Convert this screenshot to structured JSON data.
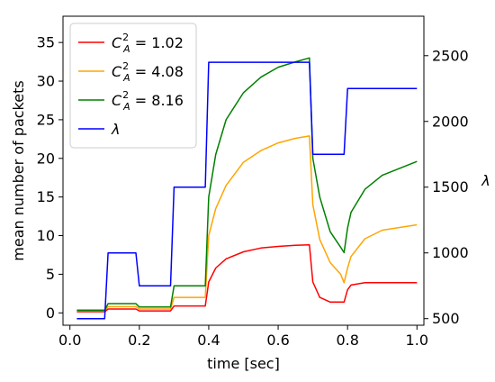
{
  "chart_data": {
    "type": "line",
    "xlabel": "time [sec]",
    "ylabel": "mean number of packets",
    "y2label": "λ",
    "xlim": [
      -0.02,
      1.02
    ],
    "ylim": [
      -1.6,
      38.4
    ],
    "y2lim": [
      450,
      2800
    ],
    "x_ticks": [
      0.0,
      0.2,
      0.4,
      0.6,
      0.8,
      1.0
    ],
    "x_tick_labels": [
      "0.0",
      "0.2",
      "0.4",
      "0.6",
      "0.8",
      "1.0"
    ],
    "y_ticks": [
      0,
      5,
      10,
      15,
      20,
      25,
      30,
      35
    ],
    "y_tick_labels": [
      "0",
      "5",
      "10",
      "15",
      "20",
      "25",
      "30",
      "35"
    ],
    "y2_ticks": [
      500,
      1000,
      1500,
      2000,
      2500
    ],
    "y2_tick_labels": [
      "500",
      "1000",
      "1500",
      "2000",
      "2500"
    ],
    "legend_position": "top-left",
    "grid": false,
    "series": [
      {
        "name_base": "C",
        "name_sup": "2",
        "name_sub": "A",
        "name_value": " = 1.02",
        "color": "#ff0000",
        "axis": "left",
        "x": [
          0.02,
          0.1,
          0.11,
          0.19,
          0.2,
          0.29,
          0.3,
          0.39,
          0.4,
          0.42,
          0.45,
          0.5,
          0.55,
          0.6,
          0.65,
          0.69,
          0.7,
          0.72,
          0.75,
          0.79,
          0.8,
          0.81,
          0.85,
          0.9,
          1.0
        ],
        "y": [
          0.15,
          0.15,
          0.5,
          0.5,
          0.25,
          0.25,
          0.9,
          0.9,
          4.0,
          5.8,
          7.0,
          7.9,
          8.4,
          8.6,
          8.75,
          8.8,
          4.0,
          2.0,
          1.4,
          1.4,
          3.0,
          3.6,
          3.9,
          3.9,
          3.9
        ]
      },
      {
        "name_base": "C",
        "name_sup": "2",
        "name_sub": "A",
        "name_value": " = 4.08",
        "color": "#ffa500",
        "axis": "left",
        "x": [
          0.02,
          0.1,
          0.11,
          0.19,
          0.2,
          0.29,
          0.3,
          0.39,
          0.4,
          0.42,
          0.45,
          0.5,
          0.55,
          0.6,
          0.65,
          0.69,
          0.7,
          0.72,
          0.75,
          0.78,
          0.79,
          0.8,
          0.81,
          0.85,
          0.9,
          1.0
        ],
        "y": [
          0.3,
          0.3,
          0.8,
          0.8,
          0.5,
          0.5,
          2.0,
          2.0,
          10.0,
          13.5,
          16.5,
          19.5,
          21.0,
          22.0,
          22.6,
          22.9,
          14.0,
          9.5,
          6.5,
          5.0,
          3.9,
          5.8,
          7.3,
          9.6,
          10.7,
          11.4
        ]
      },
      {
        "name_base": "C",
        "name_sup": "2",
        "name_sub": "A",
        "name_value": " = 8.16",
        "color": "#008000",
        "axis": "left",
        "x": [
          0.02,
          0.1,
          0.11,
          0.19,
          0.2,
          0.29,
          0.3,
          0.39,
          0.4,
          0.42,
          0.45,
          0.5,
          0.55,
          0.6,
          0.65,
          0.69,
          0.7,
          0.72,
          0.75,
          0.78,
          0.79,
          0.8,
          0.81,
          0.85,
          0.9,
          1.0
        ],
        "y": [
          0.35,
          0.35,
          1.2,
          1.2,
          0.75,
          0.75,
          3.5,
          3.5,
          15.0,
          20.5,
          25.0,
          28.5,
          30.5,
          31.8,
          32.5,
          33.0,
          20.0,
          15.0,
          10.5,
          8.5,
          7.8,
          11.0,
          13.0,
          16.0,
          17.8,
          19.6
        ]
      },
      {
        "name": "λ",
        "color": "#0000ff",
        "axis": "right",
        "x": [
          0.02,
          0.1,
          0.11,
          0.19,
          0.2,
          0.29,
          0.3,
          0.39,
          0.4,
          0.69,
          0.7,
          0.79,
          0.8,
          1.0
        ],
        "y": [
          500,
          500,
          1000,
          1000,
          750,
          750,
          1500,
          1500,
          2450,
          2450,
          1750,
          1750,
          2250,
          2250
        ]
      }
    ]
  }
}
